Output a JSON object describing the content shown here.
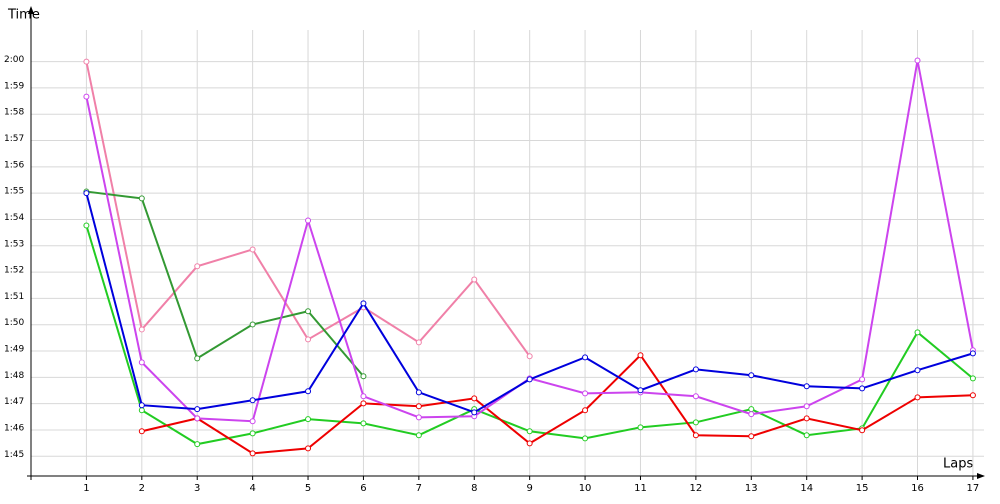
{
  "chart_data": {
    "type": "line",
    "y_label": "Time",
    "x_label": "Laps",
    "xlim": [
      0,
      17.2
    ],
    "xticks": [
      1,
      2,
      3,
      4,
      5,
      6,
      7,
      8,
      9,
      10,
      11,
      12,
      13,
      14,
      15,
      16,
      17
    ],
    "ylim": [
      104.25,
      121.2
    ],
    "yticks": [
      {
        "value": 105,
        "label": "1:45"
      },
      {
        "value": 106,
        "label": "1:46"
      },
      {
        "value": 107,
        "label": "1:47"
      },
      {
        "value": 108,
        "label": "1:48"
      },
      {
        "value": 109,
        "label": "1:49"
      },
      {
        "value": 110,
        "label": "1:50"
      },
      {
        "value": 111,
        "label": "1:51"
      },
      {
        "value": 112,
        "label": "1:52"
      },
      {
        "value": 113,
        "label": "1:53"
      },
      {
        "value": 114,
        "label": "1:54"
      },
      {
        "value": 115,
        "label": "1:55"
      },
      {
        "value": 116,
        "label": "1:56"
      },
      {
        "value": 117,
        "label": "1:57"
      },
      {
        "value": 118,
        "label": "1:58"
      },
      {
        "value": 119,
        "label": "1:59"
      },
      {
        "value": 120,
        "label": "2:00"
      }
    ],
    "grid": true,
    "x": [
      1,
      2,
      3,
      4,
      5,
      6,
      7,
      8,
      9,
      10,
      11,
      12,
      13,
      14,
      15,
      16,
      17
    ],
    "series": [
      {
        "color": "#f080a8",
        "values": [
          120.0,
          109.82,
          112.22,
          112.86,
          109.44,
          110.66,
          109.33,
          111.72,
          108.8,
          null,
          null,
          null,
          null,
          null,
          null,
          null,
          null
        ]
      },
      {
        "color": "#339933",
        "values": [
          115.06,
          114.8,
          108.72,
          110.01,
          110.51,
          108.04,
          null,
          null,
          null,
          null,
          null,
          null,
          null,
          null,
          null,
          null,
          null
        ]
      },
      {
        "color": "#22cc22",
        "values": [
          113.77,
          106.75,
          105.46,
          105.87,
          106.41,
          106.25,
          105.8,
          106.79,
          105.95,
          105.68,
          106.1,
          106.29,
          106.79,
          105.8,
          106.06,
          109.71,
          107.96
        ]
      },
      {
        "color": "#ee0000",
        "values": [
          null,
          105.95,
          106.44,
          105.11,
          105.3,
          107.01,
          106.9,
          107.2,
          105.49,
          106.75,
          108.84,
          105.8,
          105.76,
          106.44,
          105.99,
          107.24,
          107.32
        ]
      },
      {
        "color": "#cc44ee",
        "values": [
          118.67,
          108.57,
          106.44,
          106.33,
          113.96,
          107.28,
          106.48,
          106.52,
          107.96,
          107.39,
          107.43,
          107.28,
          106.6,
          106.9,
          107.92,
          120.04,
          109.03
        ]
      },
      {
        "color": "#0000dd",
        "values": [
          115.0,
          106.94,
          106.79,
          107.13,
          107.47,
          110.81,
          107.43,
          106.67,
          107.92,
          108.76,
          107.51,
          108.3,
          108.08,
          107.66,
          107.58,
          108.27,
          108.91
        ]
      }
    ]
  }
}
